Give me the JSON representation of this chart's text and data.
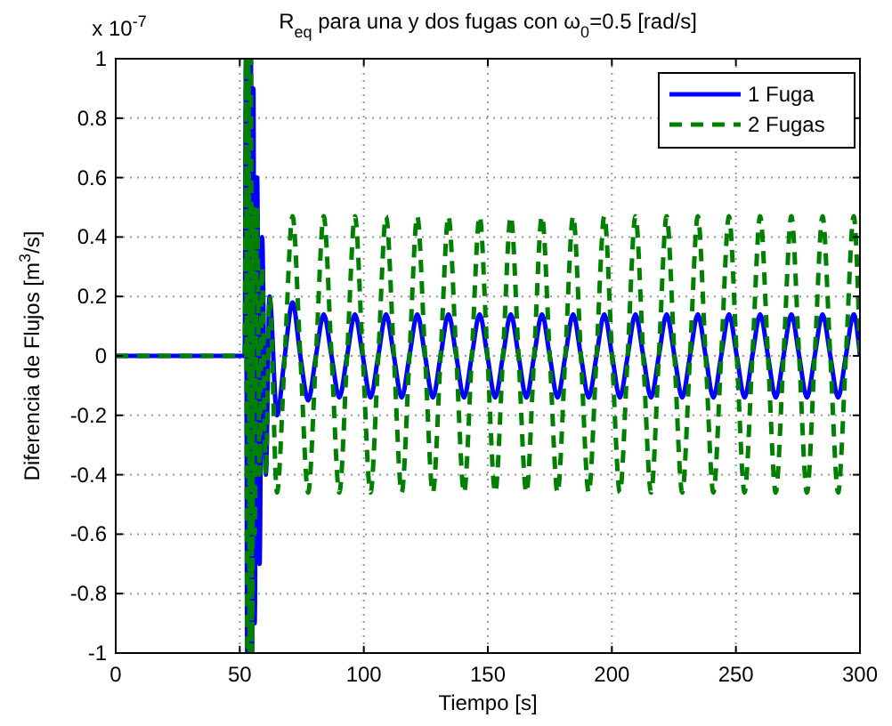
{
  "chart_data": {
    "type": "line",
    "title": "R$_{eq}$ para una y dos fugas con ω$_{0}$=0.5 [rad/s]",
    "xlabel": "Tiempo [s]",
    "ylabel": "Diferencia de Flujos [m$^{3}$/s]",
    "annotations": [
      "x 10$^{-7}$"
    ],
    "x": [
      0,
      52,
      52.5,
      53,
      53.5,
      54,
      54.5,
      55,
      55.5,
      56,
      57,
      58,
      59,
      60.5,
      62,
      65,
      68.14,
      71.28,
      74.42,
      77.57,
      80.71,
      83.85,
      86.99,
      90.13,
      93.27,
      96.42,
      99.56,
      102.7,
      105.84,
      108.98,
      112.12,
      115.27,
      118.41,
      121.55,
      124.69,
      127.83,
      130.97,
      134.12,
      137.26,
      140.4,
      143.54,
      146.68,
      149.82,
      152.96,
      156.11,
      159.25,
      162.39,
      165.53,
      168.67,
      171.81,
      174.96,
      178.1,
      181.24,
      184.38,
      187.52,
      190.66,
      193.81,
      196.95,
      200.09,
      203.23,
      206.37,
      209.51,
      212.65,
      215.8,
      218.94,
      222.08,
      225.22,
      228.36,
      231.5,
      234.65,
      237.79,
      240.93,
      244.07,
      247.21,
      250.35,
      253.5,
      256.64,
      259.78,
      262.92,
      266.06,
      269.2,
      272.35,
      275.49,
      278.63,
      281.77,
      284.91,
      288.05,
      291.19,
      294.34,
      297.48,
      300
    ],
    "series": [
      {
        "name": "1 Fuga",
        "color": "#0000ff",
        "line_style": "solid",
        "values": [
          0,
          0,
          1,
          -1,
          1,
          -1,
          1,
          -1,
          0.9,
          -0.9,
          0.6,
          -0.7,
          0.4,
          -0.4,
          0.2,
          -0.2,
          0,
          0.18,
          0,
          -0.15,
          0,
          0.14,
          0,
          -0.14,
          0,
          0.14,
          0,
          -0.14,
          0,
          0.14,
          0,
          -0.14,
          0,
          0.14,
          0,
          -0.14,
          0,
          0.14,
          0,
          -0.14,
          0,
          0.14,
          0,
          -0.14,
          0,
          0.14,
          0,
          -0.14,
          0,
          0.14,
          0,
          -0.14,
          0,
          0.14,
          0,
          -0.14,
          0,
          0.14,
          0,
          -0.14,
          0,
          0.14,
          0,
          -0.14,
          0,
          0.14,
          0,
          -0.14,
          0,
          0.14,
          0,
          -0.14,
          0,
          0.14,
          0,
          -0.14,
          0,
          0.14,
          0,
          -0.14,
          0,
          0.14,
          0,
          -0.14,
          0,
          0.14,
          0,
          -0.14,
          0,
          0.14,
          0
        ]
      },
      {
        "name": "2 Fugas",
        "color": "#008000",
        "line_style": "dashed",
        "values": [
          0,
          0,
          1,
          -1,
          1,
          -1,
          1,
          -1,
          0.5,
          -0.6,
          0.5,
          -0.4,
          0.3,
          -0.4,
          0.2,
          -0.46,
          0,
          0.47,
          0,
          -0.46,
          0,
          0.47,
          0,
          -0.46,
          0,
          0.47,
          0,
          -0.46,
          0,
          0.47,
          0,
          -0.46,
          0,
          0.47,
          0,
          -0.46,
          0,
          0.47,
          0,
          -0.46,
          0,
          0.47,
          0,
          -0.46,
          0,
          0.47,
          0,
          -0.46,
          0,
          0.47,
          0,
          -0.46,
          0,
          0.47,
          0,
          -0.46,
          0,
          0.47,
          0,
          -0.46,
          0,
          0.47,
          0,
          -0.46,
          0,
          0.47,
          0,
          -0.46,
          0,
          0.47,
          0,
          -0.46,
          0,
          0.47,
          0,
          -0.46,
          0,
          0.47,
          0,
          -0.46,
          0,
          0.47,
          0,
          -0.46,
          0,
          0.47,
          0,
          -0.46,
          0,
          0.47,
          0
        ]
      }
    ],
    "xlim": [
      0,
      300
    ],
    "xticks": [
      0,
      50,
      100,
      150,
      200,
      250,
      300
    ],
    "ylim": [
      -1,
      1
    ],
    "yticks": [
      -1,
      -0.8,
      -0.6,
      -0.4,
      -0.2,
      0,
      0.2,
      0.4,
      0.6,
      0.8,
      1
    ],
    "grid": true,
    "legend": "top right",
    "marker": "none"
  }
}
